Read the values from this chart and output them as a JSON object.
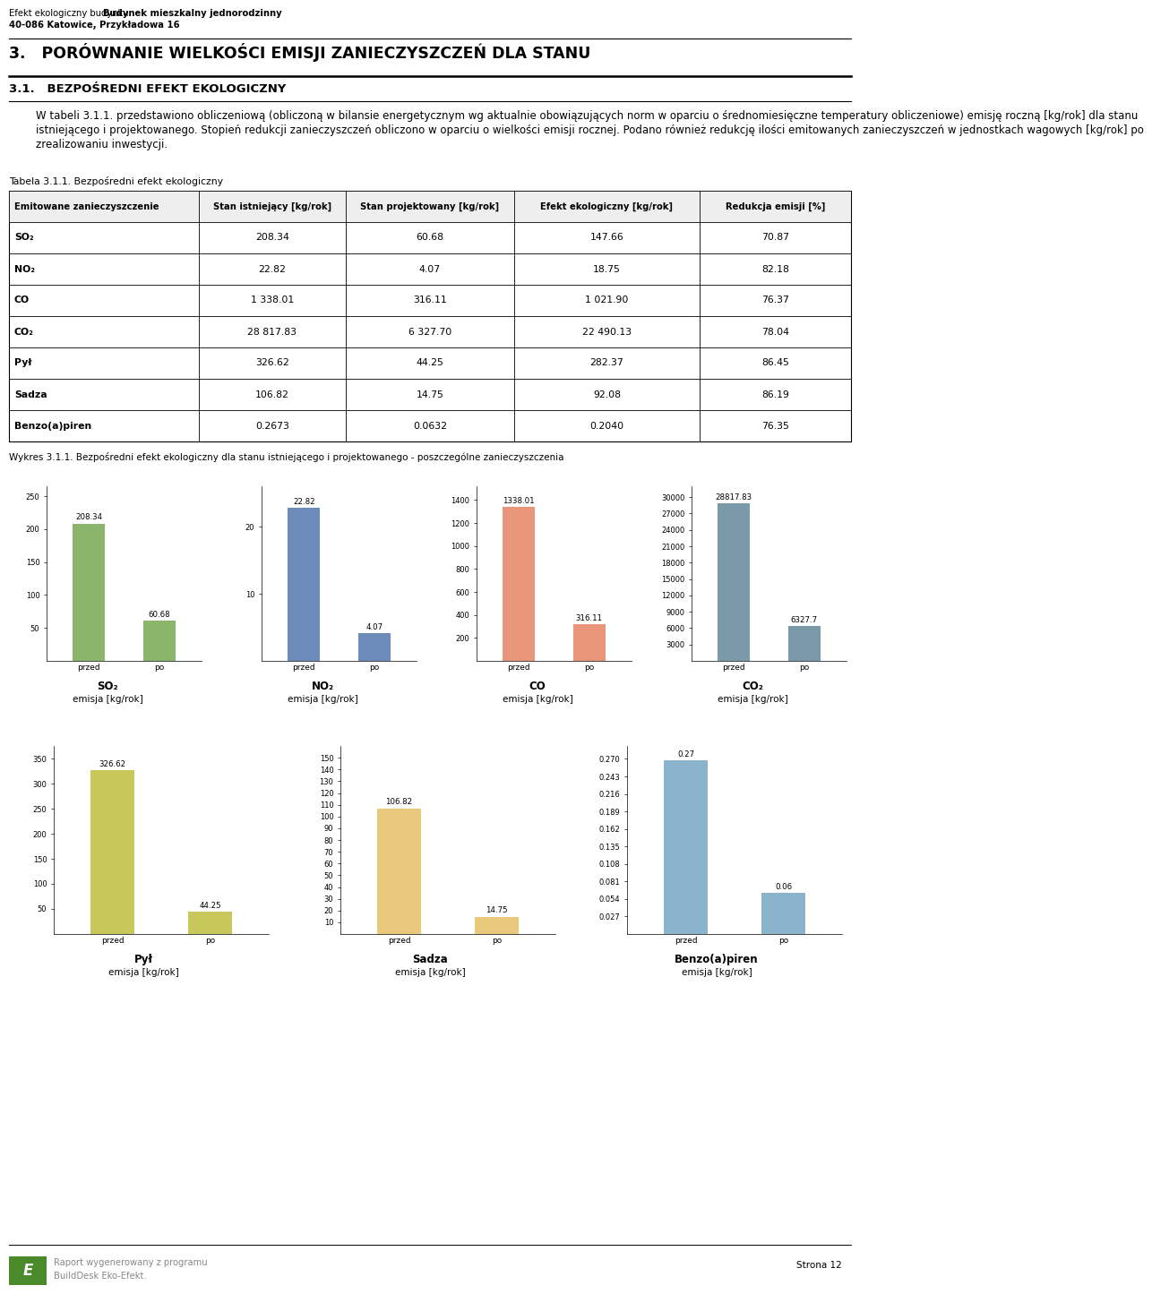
{
  "header_normal": "Efekt ekologiczny budynku ",
  "header_bold": "Budynek mieszkalny jednorodzinny",
  "header_line2": "40-086 Katowice, Przykładowa 16",
  "section_title": "3.   PORÓWNANIE WIELKOŚCI EMISJI ZANIECZYSZCZEŃ DLA STANU",
  "subsection_title": "3.1.   BEZPOŚREDNI EFEKT EKOLOGICZNY",
  "para_lines": [
    "W tabeli 3.1.1. przedstawiono obliczeniową (obliczoną w bilansie energetycznym wg aktualnie obowiązujących norm w oparciu o średnomiesięczne temperatury obliczeniowe) emisję roczną [kg/rok] dla stanu",
    "istniejącego i projektowanego. Stopień redukcji zanieczyszczeń obliczono w oparciu o wielkości emisji rocznej. Podano również redukcję ilości emitowanych zanieczyszczeń w jednostkach wagowych [kg/rok] po",
    "zrealizowaniu inwestycji."
  ],
  "table_caption": "Tabela 3.1.1. Bezpośredni efekt ekologiczny",
  "table_headers": [
    "Emitowane zanieczyszczenie",
    "Stan istniejący [kg/rok]",
    "Stan projektowany [kg/rok]",
    "Efekt ekologiczny [kg/rok]",
    "Redukcja emisji [%]"
  ],
  "table_rows": [
    [
      "SO₂",
      "208.34",
      "60.68",
      "147.66",
      "70.87"
    ],
    [
      "NO₂",
      "22.82",
      "4.07",
      "18.75",
      "82.18"
    ],
    [
      "CO",
      "1 338.01",
      "316.11",
      "1 021.90",
      "76.37"
    ],
    [
      "CO₂",
      "28 817.83",
      "6 327.70",
      "22 490.13",
      "78.04"
    ],
    [
      "Pył",
      "326.62",
      "44.25",
      "282.37",
      "86.45"
    ],
    [
      "Sadza",
      "106.82",
      "14.75",
      "92.08",
      "86.19"
    ],
    [
      "Benzo(a)piren",
      "0.2673",
      "0.0632",
      "0.2040",
      "76.35"
    ]
  ],
  "chart_caption": "Wykres 3.1.1. Bezpośredni efekt ekologiczny dla stanu istniejącego i projektowanego - poszczególne zanieczyszczenia",
  "charts_row1": [
    {
      "title_name": "SO₂",
      "title_unit": "emisja [kg/rok]",
      "przed": 208.34,
      "po": 60.68,
      "color": "#8ab56a",
      "yticks": [
        50,
        100,
        150,
        200,
        250
      ],
      "ymax": 265,
      "label_przed": "208.34",
      "label_po": "60.68"
    },
    {
      "title_name": "NO₂",
      "title_unit": "emisja [kg/rok]",
      "przed": 22.82,
      "po": 4.07,
      "color": "#6b8cba",
      "yticks": [
        10,
        20
      ],
      "ymax": 26,
      "label_przed": "22.82",
      "label_po": "4.07"
    },
    {
      "title_name": "CO",
      "title_unit": "emisja [kg/rok]",
      "przed": 1338.01,
      "po": 316.11,
      "color": "#e8957a",
      "yticks": [
        200,
        400,
        600,
        800,
        1000,
        1200,
        1400
      ],
      "ymax": 1520,
      "label_przed": "1338.01",
      "label_po": "316.11"
    },
    {
      "title_name": "CO₂",
      "title_unit": "emisja [kg/rok]",
      "przed": 28817.83,
      "po": 6327.7,
      "color": "#7a9aaa",
      "yticks": [
        3000,
        6000,
        9000,
        12000,
        15000,
        18000,
        21000,
        24000,
        27000,
        30000
      ],
      "ymax": 32000,
      "label_przed": "28817.83",
      "label_po": "6327.7"
    }
  ],
  "charts_row2": [
    {
      "title_name": "Pył",
      "title_unit": "emisja [kg/rok]",
      "przed": 326.62,
      "po": 44.25,
      "color": "#c8c85a",
      "yticks": [
        50,
        100,
        150,
        200,
        250,
        300,
        350
      ],
      "ymax": 375,
      "label_przed": "326.62",
      "label_po": "44.25"
    },
    {
      "title_name": "Sadza",
      "title_unit": "emisja [kg/rok]",
      "przed": 106.82,
      "po": 14.75,
      "color": "#e8c87a",
      "yticks": [
        10,
        20,
        30,
        40,
        50,
        60,
        70,
        80,
        90,
        100,
        110,
        120,
        130,
        140,
        150
      ],
      "ymax": 160,
      "label_przed": "106.82",
      "label_po": "14.75"
    },
    {
      "title_name": "Benzo(a)piren",
      "title_unit": "emisja [kg/rok]",
      "przed": 0.2673,
      "po": 0.0632,
      "color": "#8ab4cc",
      "yticks": [
        0.027,
        0.054,
        0.081,
        0.108,
        0.135,
        0.162,
        0.189,
        0.216,
        0.243,
        0.27
      ],
      "ymax": 0.29,
      "label_przed": "0.27",
      "label_po": "0.06"
    }
  ],
  "footer_report": "Raport wygenerowany z programu",
  "footer_program": "BuildDesk Eko-Efekt.",
  "footer_page": "Strona 12",
  "logo_color": "#4a8a2a"
}
